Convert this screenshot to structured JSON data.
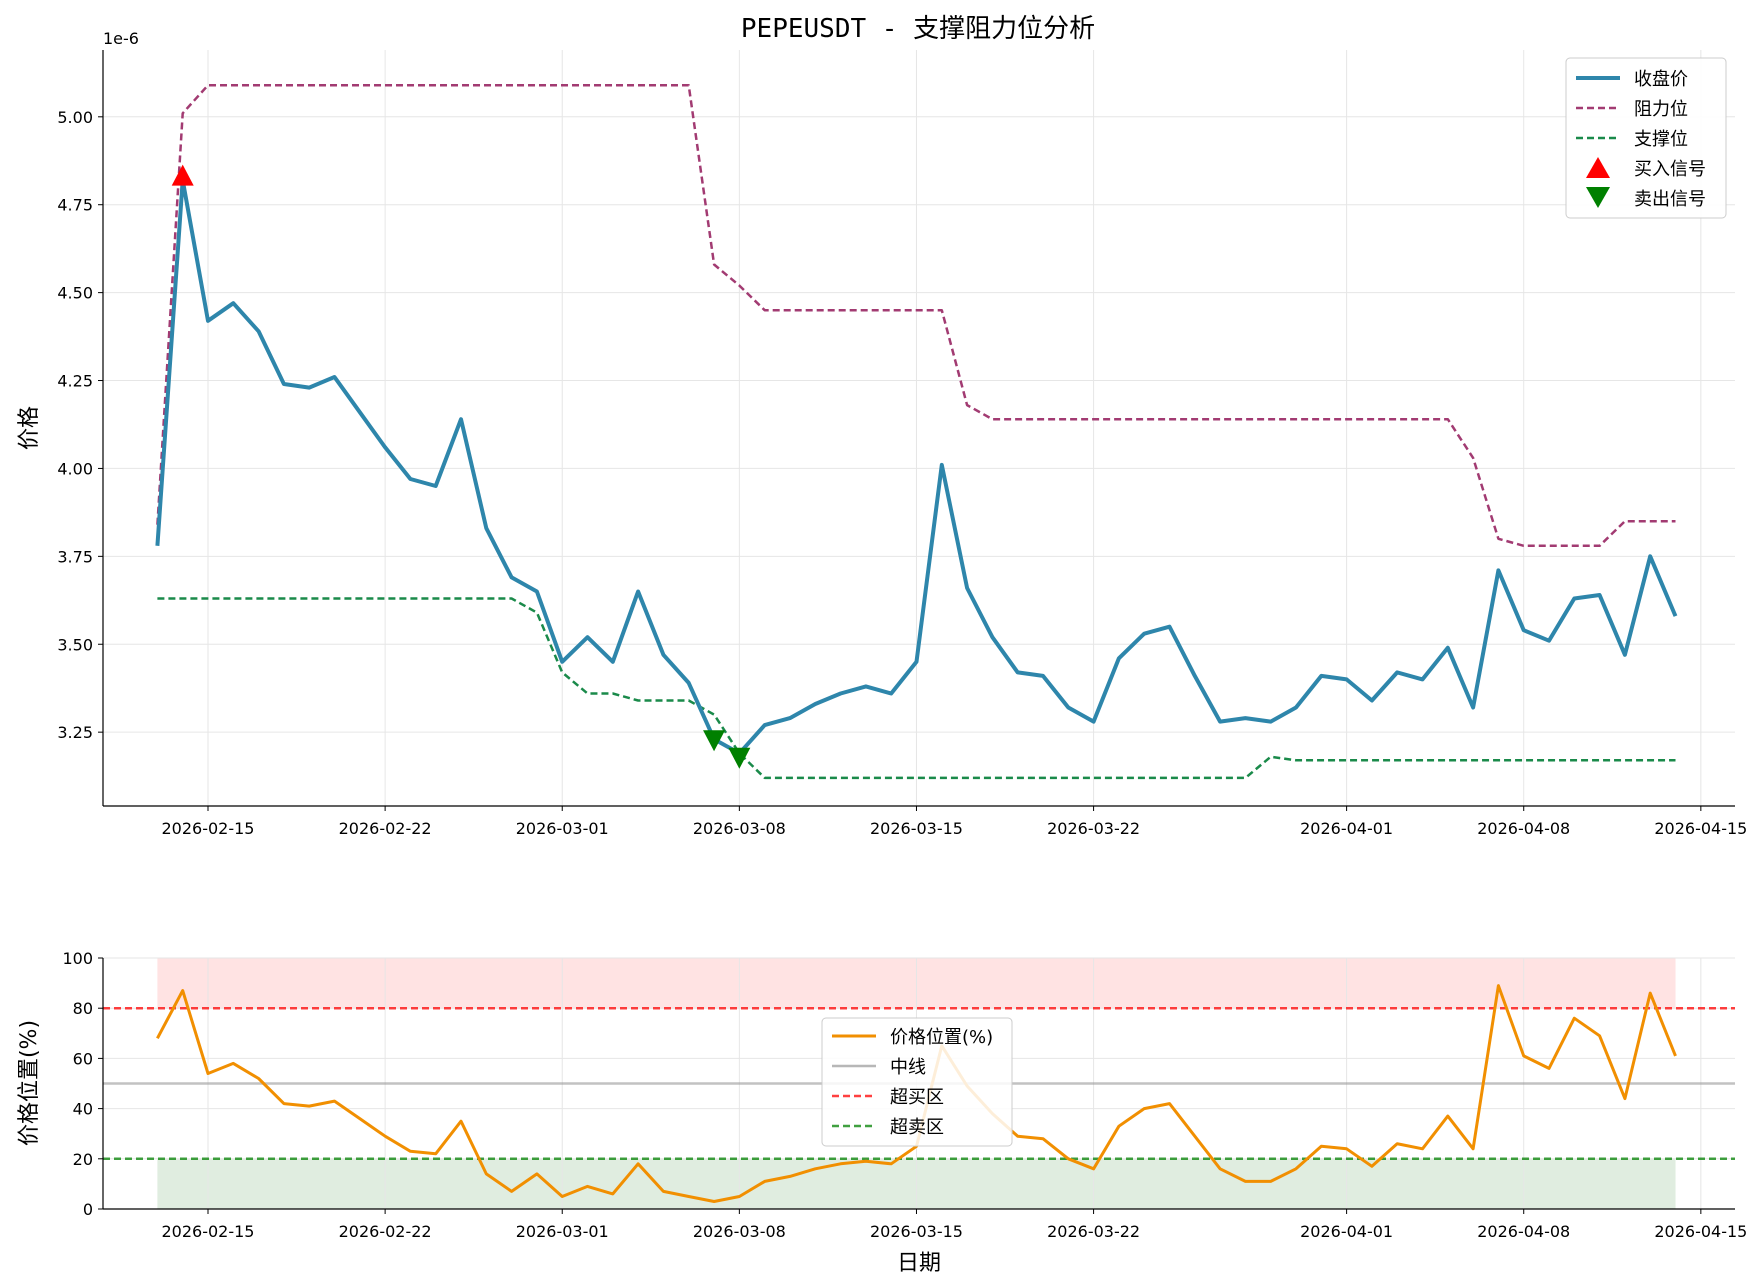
{
  "chart_data": [
    {
      "type": "line",
      "title": "PEPEUSDT - 支撑阻力位分析",
      "ylabel": "价格",
      "xlabel": "",
      "y_offset_label": "1e-6",
      "ylim": [
        3.04,
        5.19
      ],
      "xlim": [
        "2026-02-10",
        "2026-04-16"
      ],
      "y_ticks": [
        3.25,
        3.5,
        3.75,
        4.0,
        4.25,
        4.5,
        4.75,
        5.0
      ],
      "y_tick_labels": [
        "3.25",
        "3.50",
        "3.75",
        "4.00",
        "4.25",
        "4.50",
        "4.75",
        "5.00"
      ],
      "x_ticks": [
        "2026-02-15",
        "2026-02-22",
        "2026-03-01",
        "2026-03-08",
        "2026-03-15",
        "2026-03-22",
        "2026-04-01",
        "2026-04-08",
        "2026-04-15"
      ],
      "grid": true,
      "legend_position": "top-right",
      "x": [
        "2026-02-13",
        "2026-02-14",
        "2026-02-15",
        "2026-02-16",
        "2026-02-17",
        "2026-02-18",
        "2026-02-19",
        "2026-02-20",
        "2026-02-21",
        "2026-02-22",
        "2026-02-23",
        "2026-02-24",
        "2026-02-25",
        "2026-02-26",
        "2026-02-27",
        "2026-02-28",
        "2026-03-01",
        "2026-03-02",
        "2026-03-03",
        "2026-03-04",
        "2026-03-05",
        "2026-03-06",
        "2026-03-07",
        "2026-03-08",
        "2026-03-09",
        "2026-03-10",
        "2026-03-11",
        "2026-03-12",
        "2026-03-13",
        "2026-03-14",
        "2026-03-15",
        "2026-03-16",
        "2026-03-17",
        "2026-03-18",
        "2026-03-19",
        "2026-03-20",
        "2026-03-21",
        "2026-03-22",
        "2026-03-23",
        "2026-03-24",
        "2026-03-25",
        "2026-03-26",
        "2026-03-27",
        "2026-03-28",
        "2026-03-29",
        "2026-03-30",
        "2026-03-31",
        "2026-04-01",
        "2026-04-02",
        "2026-04-03",
        "2026-04-04",
        "2026-04-05",
        "2026-04-06",
        "2026-04-07",
        "2026-04-08",
        "2026-04-09",
        "2026-04-10",
        "2026-04-11",
        "2026-04-12",
        "2026-04-13",
        "2026-04-14"
      ],
      "series": [
        {
          "name": "收盘价",
          "color": "#2e86ab",
          "style": "solid",
          "values": [
            3.78,
            4.82,
            4.42,
            4.47,
            4.39,
            4.24,
            4.23,
            4.26,
            4.16,
            4.06,
            3.97,
            3.95,
            4.14,
            3.83,
            3.69,
            3.65,
            3.45,
            3.52,
            3.45,
            3.65,
            3.47,
            3.39,
            3.23,
            3.19,
            3.27,
            3.29,
            3.33,
            3.36,
            3.38,
            3.36,
            3.45,
            4.01,
            3.66,
            3.52,
            3.42,
            3.41,
            3.32,
            3.28,
            3.46,
            3.53,
            3.55,
            3.41,
            3.28,
            3.29,
            3.28,
            3.32,
            3.41,
            3.4,
            3.34,
            3.42,
            3.4,
            3.49,
            3.32,
            3.71,
            3.54,
            3.51,
            3.63,
            3.64,
            3.47,
            3.75,
            3.58
          ]
        },
        {
          "name": "阻力位",
          "color": "#a23b72",
          "style": "dashed",
          "values": [
            3.84,
            5.01,
            5.09,
            5.09,
            5.09,
            5.09,
            5.09,
            5.09,
            5.09,
            5.09,
            5.09,
            5.09,
            5.09,
            5.09,
            5.09,
            5.09,
            5.09,
            5.09,
            5.09,
            5.09,
            5.09,
            5.09,
            4.58,
            4.52,
            4.45,
            4.45,
            4.45,
            4.45,
            4.45,
            4.45,
            4.45,
            4.45,
            4.18,
            4.14,
            4.14,
            4.14,
            4.14,
            4.14,
            4.14,
            4.14,
            4.14,
            4.14,
            4.14,
            4.14,
            4.14,
            4.14,
            4.14,
            4.14,
            4.14,
            4.14,
            4.14,
            4.14,
            4.03,
            3.8,
            3.78,
            3.78,
            3.78,
            3.78,
            3.85,
            3.85,
            3.85
          ]
        },
        {
          "name": "支撑位",
          "color": "#1a8a4a",
          "style": "dashed",
          "values": [
            3.63,
            3.63,
            3.63,
            3.63,
            3.63,
            3.63,
            3.63,
            3.63,
            3.63,
            3.63,
            3.63,
            3.63,
            3.63,
            3.63,
            3.63,
            3.59,
            3.42,
            3.36,
            3.36,
            3.34,
            3.34,
            3.34,
            3.3,
            3.19,
            3.12,
            3.12,
            3.12,
            3.12,
            3.12,
            3.12,
            3.12,
            3.12,
            3.12,
            3.12,
            3.12,
            3.12,
            3.12,
            3.12,
            3.12,
            3.12,
            3.12,
            3.12,
            3.12,
            3.12,
            3.18,
            3.17,
            3.17,
            3.17,
            3.17,
            3.17,
            3.17,
            3.17,
            3.17,
            3.17,
            3.17,
            3.17,
            3.17,
            3.17,
            3.17,
            3.17,
            3.17
          ]
        }
      ],
      "markers": [
        {
          "name": "买入信号",
          "color": "#ff0000",
          "shape": "triangle-up",
          "points": [
            {
              "x": "2026-02-14",
              "y": 4.83
            }
          ]
        },
        {
          "name": "卖出信号",
          "color": "#008000",
          "shape": "triangle-down",
          "points": [
            {
              "x": "2026-03-07",
              "y": 3.23
            },
            {
              "x": "2026-03-08",
              "y": 3.18
            }
          ]
        }
      ]
    },
    {
      "type": "line",
      "title": "",
      "ylabel": "价格位置(%)",
      "xlabel": "日期",
      "ylim": [
        0,
        100
      ],
      "xlim": [
        "2026-02-10",
        "2026-04-16"
      ],
      "y_ticks": [
        0,
        20,
        40,
        60,
        80,
        100
      ],
      "y_tick_labels": [
        "0",
        "20",
        "40",
        "60",
        "80",
        "100"
      ],
      "x_ticks": [
        "2026-02-15",
        "2026-02-22",
        "2026-03-01",
        "2026-03-08",
        "2026-03-15",
        "2026-03-22",
        "2026-04-01",
        "2026-04-08",
        "2026-04-15"
      ],
      "grid": true,
      "legend_position": "center",
      "x_start": "2026-02-13",
      "series": [
        {
          "name": "价格位置(%)",
          "color": "#f18f01",
          "style": "solid",
          "values": [
            68,
            87,
            54,
            58,
            52,
            42,
            41,
            43,
            36,
            29,
            23,
            22,
            35,
            14,
            7,
            14,
            5,
            9,
            6,
            18,
            7,
            5,
            3,
            5,
            11,
            13,
            16,
            18,
            19,
            18,
            25,
            65,
            49,
            38,
            29,
            28,
            20,
            16,
            33,
            40,
            42,
            29,
            16,
            11,
            11,
            16,
            25,
            24,
            17,
            26,
            24,
            37,
            24,
            89,
            61,
            56,
            76,
            69,
            44,
            86,
            61
          ]
        },
        {
          "name": "中线",
          "color": "#999999",
          "style": "solid",
          "values": [
            50
          ]
        },
        {
          "name": "超买区",
          "color": "#ff0000",
          "style": "dashed",
          "values": [
            80
          ]
        },
        {
          "name": "超卖区",
          "color": "#008000",
          "style": "dashed",
          "values": [
            20
          ]
        }
      ],
      "shaded_bands": [
        {
          "from": 80,
          "to": 100,
          "color": "#ff9999"
        },
        {
          "from": 0,
          "to": 20,
          "color": "#90c090"
        }
      ]
    }
  ]
}
